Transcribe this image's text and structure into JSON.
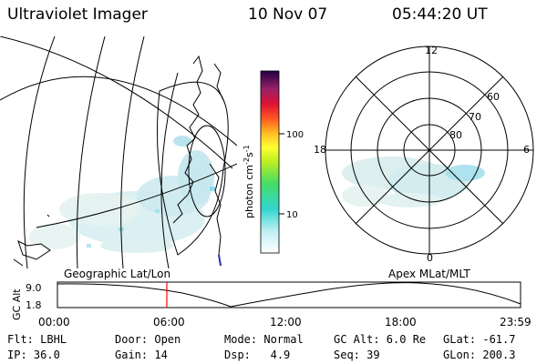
{
  "header": {
    "instrument": "Ultraviolet Imager",
    "date": "10 Nov 07",
    "time": "05:44:20 UT"
  },
  "colorbar": {
    "unit_label": "photon cm",
    "unit_exp1": "-2",
    "unit_mid": "s",
    "unit_exp2": "-1",
    "ticks": [
      "100",
      "10"
    ]
  },
  "polar_plot": {
    "mlt_labels": [
      "12",
      "18",
      "6",
      "0"
    ],
    "lat_labels": [
      "60",
      "70",
      "80"
    ]
  },
  "map_labels": {
    "left": "Geographic Lat/Lon",
    "right": "Apex MLat/MLT"
  },
  "altitude_plot": {
    "ylabel": "GC Alt",
    "yticks": [
      "9.0",
      "1.8"
    ],
    "xticks": [
      "00:00",
      "06:00",
      "12:00",
      "18:00",
      "23:59"
    ],
    "current_time_marker": "05:44",
    "marker_color": "#ff0000"
  },
  "status": {
    "flt": "Flt: LBHL",
    "ip": "IP: 36.0",
    "door": "Door: Open",
    "gain": "Gain: 14",
    "mode": "Mode: Normal",
    "dsp_label": "Dsp:",
    "dsp_value": "4.9",
    "gc_alt": "GC Alt: 6.0 Re",
    "seq": "Seq: 39",
    "glat": "GLat: -61.7",
    "glon": "GLon: 200.3"
  }
}
